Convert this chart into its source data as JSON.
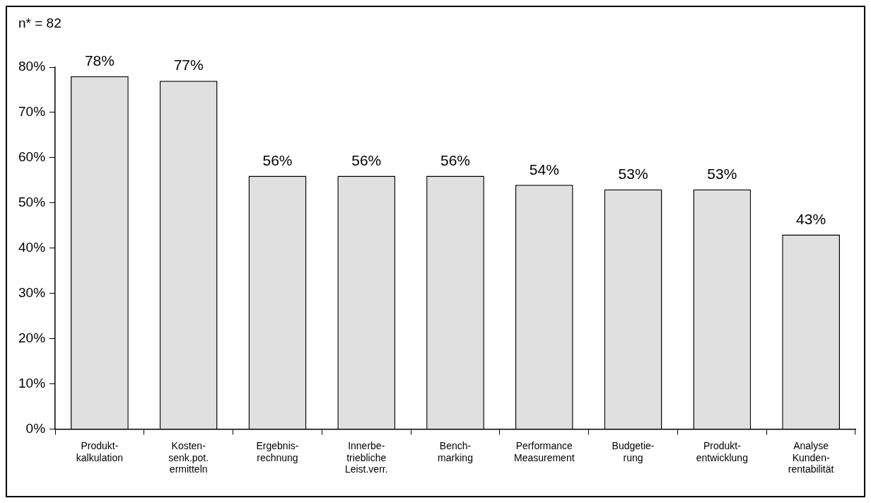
{
  "chart_data": {
    "type": "bar",
    "categories": [
      "Produkt-\nkalkulation",
      "Kosten-\nsenk.pot.\nermitteln",
      "Ergebnis-\nrechnung",
      "Innerbe-\ntriebliche\nLeist.verr.",
      "Bench-\nmarking",
      "Performance\nMeasurement",
      "Budgetie-\nrung",
      "Produkt-\nentwicklung",
      "Analyse\nKunden-\nrentabilität"
    ],
    "values": [
      78,
      77,
      56,
      56,
      56,
      54,
      53,
      53,
      43
    ],
    "color": "#e0e0e0",
    "value_labels": [
      "78%",
      "77%",
      "56%",
      "56%",
      "56%",
      "54%",
      "53%",
      "53%",
      "43%"
    ],
    "ylim": [
      0,
      80
    ],
    "yticks": [
      {
        "value": 0,
        "label": "0%"
      },
      {
        "value": 10,
        "label": "10%"
      },
      {
        "value": 20,
        "label": "20%"
      },
      {
        "value": 30,
        "label": "30%"
      },
      {
        "value": 40,
        "label": "40%"
      },
      {
        "value": 50,
        "label": "50%"
      },
      {
        "value": 60,
        "label": "60%"
      },
      {
        "value": 70,
        "label": "70%"
      },
      {
        "value": 80,
        "label": "80%"
      }
    ],
    "annotations": [
      "n* = 82"
    ],
    "grid": false,
    "legend": false
  }
}
